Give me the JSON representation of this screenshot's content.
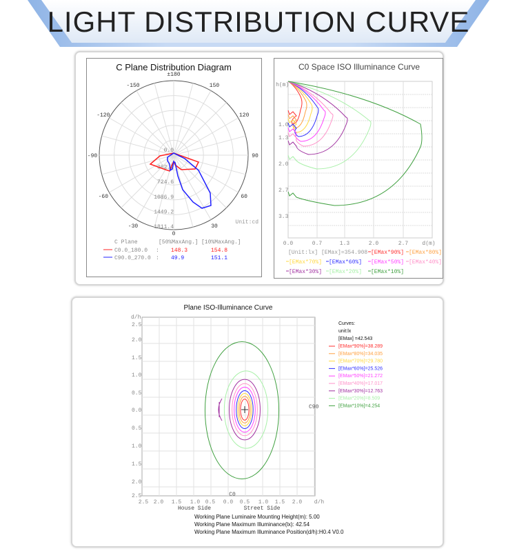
{
  "header": {
    "title": "LIGHT DISTRIBUTION CURVE"
  },
  "chart_data": [
    {
      "type": "polar",
      "title": "C Plane Distribution Diagram",
      "angle_labels": [
        "±180",
        "150",
        "120",
        "90",
        "60",
        "30",
        "0",
        "-30",
        "-60",
        "-90",
        "-120",
        "-150"
      ],
      "radial_labels": [
        "0.0",
        "362.2",
        "724.6",
        "1086.9",
        "1449.2",
        "1811.4"
      ],
      "unit": "Unit:cd",
      "legend_header": {
        "plane": "C Plane",
        "col1": "[50%MaxAng.]",
        "col2": "[10%MaxAng.]"
      },
      "series": [
        {
          "name": "C0.0_180.0",
          "sep": ":",
          "max50": "148.3",
          "max10": "154.8",
          "color": "#ff2020"
        },
        {
          "name": "C90.0_270.0",
          "sep": ":",
          "max50": "49.9",
          "max10": "151.1",
          "color": "#2020ff"
        }
      ]
    },
    {
      "type": "line",
      "title": "C0 Space ISO Illuminance Curve",
      "ylabel": "h(m)",
      "xlabel": "d(m)",
      "xticks": [
        "0.0",
        "0.7",
        "1.3",
        "2.0",
        "2.7"
      ],
      "yticks": [
        "1.0",
        "1.3",
        "2.0",
        "2.7",
        "3.3"
      ],
      "unit": "[Unit:lx]",
      "emax": "[EMax]=354.908",
      "series": [
        {
          "name": "[EMax*90%]",
          "color": "#ff3030"
        },
        {
          "name": "[EMax*80%]",
          "color": "#ffa040"
        },
        {
          "name": "[EMax*70%]",
          "color": "#ffd840"
        },
        {
          "name": "[EMax*60%]",
          "color": "#3030ff"
        },
        {
          "name": "[EMax*50%]",
          "color": "#ff40ff"
        },
        {
          "name": "[EMax*40%]",
          "color": "#ff90c8"
        },
        {
          "name": "[EMax*30%]",
          "color": "#a030a0"
        },
        {
          "name": "[EMax*20%]",
          "color": "#a8f0a8"
        },
        {
          "name": "[EMax*10%]",
          "color": "#40a040"
        }
      ]
    },
    {
      "type": "contour",
      "title": "Plane ISO-Illuminance Curve",
      "ylabel": "d/h",
      "xlabel": "d/h",
      "xticks": [
        "2.5",
        "2.0",
        "1.5",
        "1.0",
        "0.5",
        "0.0",
        "0.5",
        "1.0",
        "1.5",
        "2.0"
      ],
      "yticks": [
        "2.5",
        "2.0",
        "1.5",
        "1.0",
        "0.5",
        "0.0",
        "0.5",
        "1.0",
        "1.5",
        "2.0",
        "2.5"
      ],
      "house_side": "House Side",
      "street_side": "Street Side",
      "c0": "C0",
      "c90": "C90",
      "legend": {
        "curves": "Curves:",
        "unit": "unit:lx",
        "emax": "[EMax]    =42.543"
      },
      "series": [
        {
          "name": "[EMax*90%]=38.289",
          "color": "#ff3030",
          "rx": 0.12,
          "ry": 0.3
        },
        {
          "name": "[EMax*80%]=34.035",
          "color": "#ffa040",
          "rx": 0.16,
          "ry": 0.38
        },
        {
          "name": "[EMax*70%]=29.780",
          "color": "#ffd840",
          "rx": 0.2,
          "ry": 0.46
        },
        {
          "name": "[EMax*60%]=25.526",
          "color": "#3030ff",
          "rx": 0.24,
          "ry": 0.54
        },
        {
          "name": "[EMax*50%]=21.272",
          "color": "#ff40ff",
          "rx": 0.3,
          "ry": 0.64
        },
        {
          "name": "[EMax*40%]=17.017",
          "color": "#ff90c8",
          "rx": 0.36,
          "ry": 0.74
        },
        {
          "name": "[EMax*30%]=12.763",
          "color": "#a030a0",
          "rx": 0.44,
          "ry": 0.86
        },
        {
          "name": "[EMax*20%]=8.509",
          "color": "#a8f0a8",
          "rx": 0.62,
          "ry": 1.1
        },
        {
          "name": "[EMax*10%]=4.254",
          "color": "#40a040",
          "rx": 1.05,
          "ry": 1.95
        }
      ],
      "info": [
        "Working Plane Luminaire Mounting Height(m): 5.00",
        "Working Plane Maximum Illuminance(lx): 42.54",
        "Working Plane Maximum Illuminance Position(d/h):H0.4 V0.0"
      ]
    }
  ]
}
